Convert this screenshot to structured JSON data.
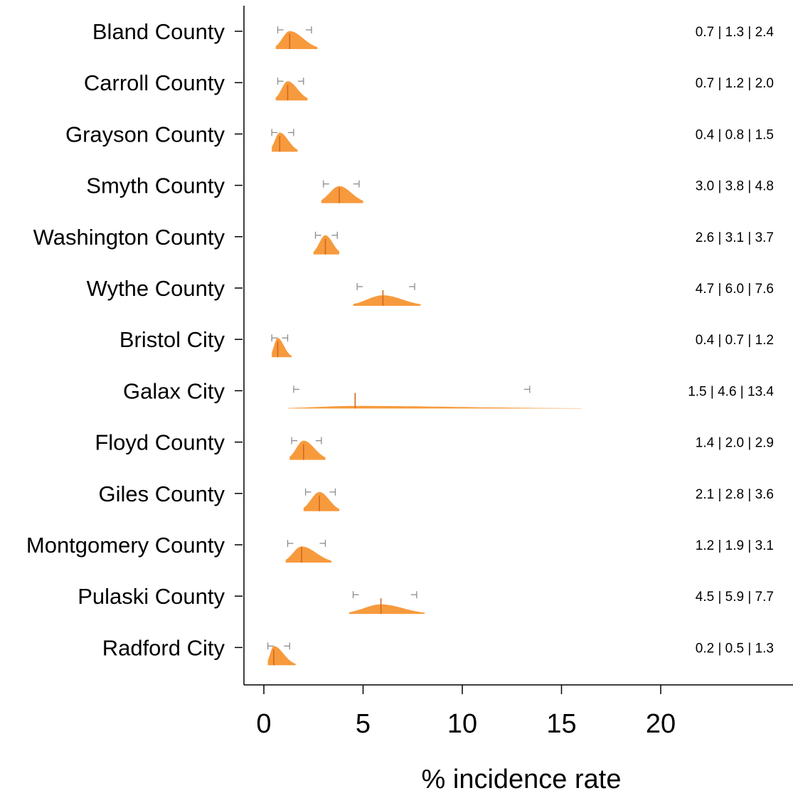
{
  "chart_data": {
    "type": "violin",
    "xlabel": "% incidence rate",
    "xlim": [
      -1,
      26.8
    ],
    "xticks": [
      0,
      5,
      10,
      15,
      20
    ],
    "grid": false,
    "colors": {
      "fill": "#f79533",
      "median": "#d2691e",
      "ci_bracket": "#8c8c8c",
      "axis": "#000000"
    },
    "categories": [
      {
        "name": "Bland County",
        "lower": 0.7,
        "median": 1.3,
        "upper": 2.4,
        "label": "0.7 | 1.3 | 2.4",
        "dist_min": 0.6,
        "dist_max": 2.7
      },
      {
        "name": "Carroll County",
        "lower": 0.7,
        "median": 1.2,
        "upper": 2.0,
        "label": "0.7 | 1.2 | 2.0",
        "dist_min": 0.6,
        "dist_max": 2.2
      },
      {
        "name": "Grayson County",
        "lower": 0.4,
        "median": 0.8,
        "upper": 1.5,
        "label": "0.4 | 0.8 | 1.5",
        "dist_min": 0.4,
        "dist_max": 1.7
      },
      {
        "name": "Smyth County",
        "lower": 3.0,
        "median": 3.8,
        "upper": 4.8,
        "label": "3.0 | 3.8 | 4.8",
        "dist_min": 2.9,
        "dist_max": 5.0
      },
      {
        "name": "Washington County",
        "lower": 2.6,
        "median": 3.1,
        "upper": 3.7,
        "label": "2.6 | 3.1 | 3.7",
        "dist_min": 2.5,
        "dist_max": 3.8
      },
      {
        "name": "Wythe County",
        "lower": 4.7,
        "median": 6.0,
        "upper": 7.6,
        "label": "4.7 | 6.0 | 7.6",
        "dist_min": 4.5,
        "dist_max": 7.9
      },
      {
        "name": "Bristol City",
        "lower": 0.4,
        "median": 0.7,
        "upper": 1.2,
        "label": "0.4 | 0.7 | 1.2",
        "dist_min": 0.4,
        "dist_max": 1.4
      },
      {
        "name": "Galax City",
        "lower": 1.5,
        "median": 4.6,
        "upper": 13.4,
        "label": "1.5 | 4.6 | 13.4",
        "dist_min": 1.2,
        "dist_max": 16.0
      },
      {
        "name": "Floyd County",
        "lower": 1.4,
        "median": 2.0,
        "upper": 2.9,
        "label": "1.4 | 2.0 | 2.9",
        "dist_min": 1.3,
        "dist_max": 3.1
      },
      {
        "name": "Giles County",
        "lower": 2.1,
        "median": 2.8,
        "upper": 3.6,
        "label": "2.1 | 2.8 | 3.6",
        "dist_min": 2.0,
        "dist_max": 3.8
      },
      {
        "name": "Montgomery County",
        "lower": 1.2,
        "median": 1.9,
        "upper": 3.1,
        "label": "1.2 | 1.9 | 3.1",
        "dist_min": 1.1,
        "dist_max": 3.4
      },
      {
        "name": "Pulaski County",
        "lower": 4.5,
        "median": 5.9,
        "upper": 7.7,
        "label": "4.5 | 5.9 | 7.7",
        "dist_min": 4.3,
        "dist_max": 8.1
      },
      {
        "name": "Radford City",
        "lower": 0.2,
        "median": 0.5,
        "upper": 1.3,
        "label": "0.2 | 0.5 | 1.3",
        "dist_min": 0.2,
        "dist_max": 1.6
      }
    ]
  }
}
